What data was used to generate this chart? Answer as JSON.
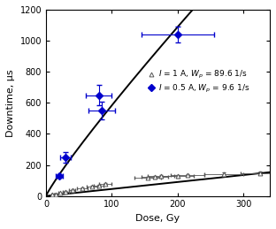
{
  "title": "",
  "xlabel": "Dose, Gy",
  "ylabel": "Downtime, μs",
  "xlim": [
    0,
    340
  ],
  "ylim": [
    0,
    1200
  ],
  "xticks": [
    0,
    100,
    200,
    300
  ],
  "yticks": [
    0,
    200,
    400,
    600,
    800,
    1000,
    1200
  ],
  "blue_data": {
    "x": [
      20,
      30,
      80,
      85,
      200
    ],
    "y": [
      130,
      250,
      650,
      550,
      1040
    ],
    "xerr": [
      5,
      8,
      20,
      20,
      55
    ],
    "yerr": [
      10,
      35,
      65,
      55,
      50
    ],
    "color": "#0000cc",
    "marker": "D",
    "label": "$I$ = 0.5 A, $W_p$ = 9.6 1/s"
  },
  "gray_data": {
    "x": [
      10,
      15,
      22,
      30,
      40,
      55,
      70,
      80,
      90,
      155,
      165,
      175,
      200,
      215,
      270,
      325
    ],
    "y": [
      8,
      12,
      18,
      28,
      38,
      48,
      60,
      68,
      78,
      118,
      122,
      128,
      128,
      135,
      142,
      148
    ],
    "xerr": [
      2,
      2,
      3,
      5,
      5,
      8,
      8,
      8,
      10,
      20,
      20,
      20,
      25,
      25,
      30,
      30
    ],
    "yerr": [
      2,
      2,
      3,
      4,
      4,
      5,
      5,
      5,
      7,
      8,
      8,
      8,
      8,
      8,
      8,
      8
    ],
    "color": "#555555",
    "marker": "^",
    "label": "$I$ = 1 A, $W_p$ = 89.6 1/s"
  },
  "blue_curve_params": [
    4.5,
    0.78
  ],
  "gray_curve_params": [
    0.48,
    1.0
  ],
  "background": "#ffffff",
  "legend_fontsize": 6.5,
  "axis_fontsize": 8,
  "tick_fontsize": 7
}
